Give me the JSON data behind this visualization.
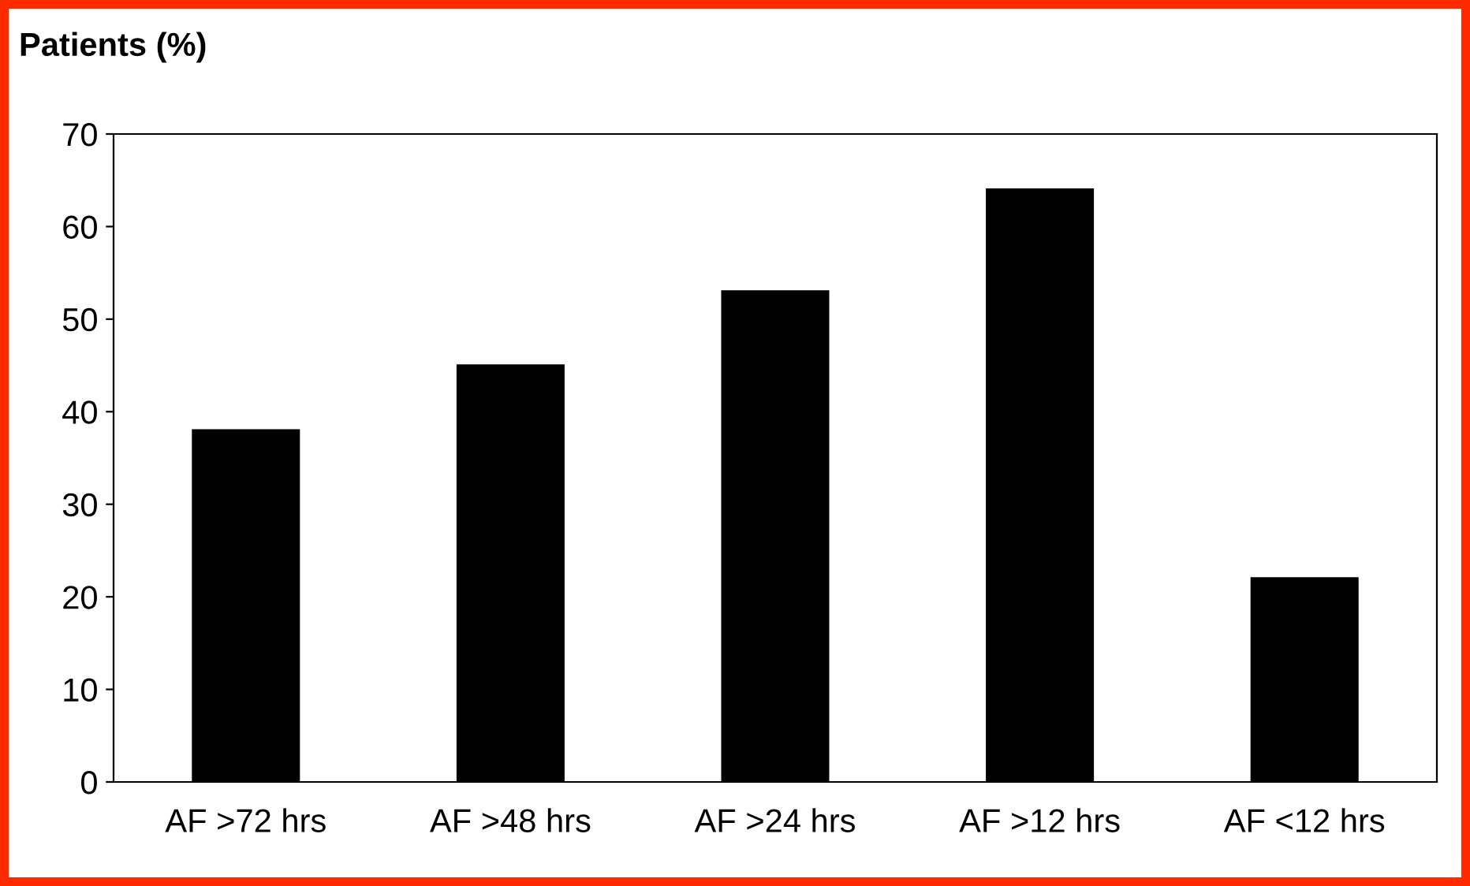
{
  "chart_data": {
    "type": "bar",
    "ylabel": "Patients (%)",
    "categories": [
      "AF >72 hrs",
      "AF >48 hrs",
      "AF >24 hrs",
      "AF >12 hrs",
      "AF <12 hrs"
    ],
    "values": [
      38,
      45,
      53,
      64,
      22
    ],
    "color": "#000000",
    "ylim": [
      0,
      70
    ],
    "yticks": [
      0,
      10,
      20,
      30,
      40,
      50,
      60,
      70
    ],
    "grid": false,
    "legend": false
  }
}
